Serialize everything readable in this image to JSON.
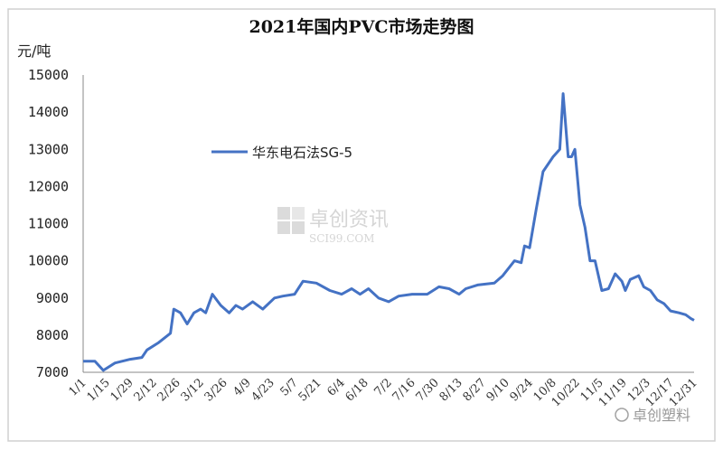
{
  "chart_data": {
    "type": "line",
    "title": "2021年国内PVC市场走势图",
    "ylabel": "元/吨",
    "xlabel": "",
    "ylim": [
      7000,
      15000
    ],
    "yticks": [
      7000,
      8000,
      9000,
      10000,
      11000,
      12000,
      13000,
      14000,
      15000
    ],
    "xticks": [
      "1/1",
      "1/15",
      "1/29",
      "2/12",
      "2/26",
      "3/12",
      "3/26",
      "4/9",
      "4/23",
      "5/7",
      "5/21",
      "6/4",
      "6/18",
      "7/2",
      "7/16",
      "7/30",
      "8/13",
      "8/27",
      "9/10",
      "9/24",
      "10/8",
      "10/22",
      "11/5",
      "11/19",
      "12/3",
      "12/17",
      "12/31"
    ],
    "xrange": [
      "2021-01-01",
      "2021-12-31"
    ],
    "grid": false,
    "legend_position": "top-left",
    "color": "#4472C4",
    "series": [
      {
        "name": "华东电石法SG-5",
        "points": [
          [
            "1/1",
            7300
          ],
          [
            "1/8",
            7300
          ],
          [
            "1/13",
            7050
          ],
          [
            "1/20",
            7250
          ],
          [
            "1/29",
            7350
          ],
          [
            "2/5",
            7400
          ],
          [
            "2/8",
            7600
          ],
          [
            "2/15",
            7800
          ],
          [
            "2/22",
            8050
          ],
          [
            "2/24",
            8700
          ],
          [
            "2/28",
            8600
          ],
          [
            "3/4",
            8300
          ],
          [
            "3/8",
            8600
          ],
          [
            "3/12",
            8700
          ],
          [
            "3/15",
            8600
          ],
          [
            "3/19",
            9100
          ],
          [
            "3/24",
            8800
          ],
          [
            "3/29",
            8600
          ],
          [
            "4/2",
            8800
          ],
          [
            "4/6",
            8700
          ],
          [
            "4/12",
            8900
          ],
          [
            "4/18",
            8700
          ],
          [
            "4/25",
            9000
          ],
          [
            "4/30",
            9050
          ],
          [
            "5/7",
            9100
          ],
          [
            "5/12",
            9450
          ],
          [
            "5/20",
            9400
          ],
          [
            "5/28",
            9200
          ],
          [
            "6/4",
            9100
          ],
          [
            "6/10",
            9250
          ],
          [
            "6/15",
            9100
          ],
          [
            "6/20",
            9250
          ],
          [
            "6/26",
            9000
          ],
          [
            "7/2",
            8900
          ],
          [
            "7/8",
            9050
          ],
          [
            "7/16",
            9100
          ],
          [
            "7/25",
            9100
          ],
          [
            "8/1",
            9300
          ],
          [
            "8/7",
            9250
          ],
          [
            "8/13",
            9100
          ],
          [
            "8/17",
            9250
          ],
          [
            "8/24",
            9350
          ],
          [
            "9/3",
            9400
          ],
          [
            "9/8",
            9600
          ],
          [
            "9/15",
            10000
          ],
          [
            "9/19",
            9950
          ],
          [
            "9/21",
            10400
          ],
          [
            "9/24",
            10350
          ],
          [
            "9/28",
            11400
          ],
          [
            "10/2",
            12400
          ],
          [
            "10/8",
            12800
          ],
          [
            "10/12",
            13000
          ],
          [
            "10/14",
            14500
          ],
          [
            "10/17",
            12800
          ],
          [
            "10/19",
            12800
          ],
          [
            "10/21",
            13000
          ],
          [
            "10/24",
            11500
          ],
          [
            "10/27",
            10900
          ],
          [
            "10/30",
            10000
          ],
          [
            "11/2",
            10000
          ],
          [
            "11/6",
            9200
          ],
          [
            "11/10",
            9250
          ],
          [
            "11/14",
            9650
          ],
          [
            "11/18",
            9450
          ],
          [
            "11/20",
            9200
          ],
          [
            "11/23",
            9500
          ],
          [
            "11/28",
            9600
          ],
          [
            "12/1",
            9300
          ],
          [
            "12/5",
            9200
          ],
          [
            "12/9",
            8950
          ],
          [
            "12/13",
            8850
          ],
          [
            "12/17",
            8650
          ],
          [
            "12/22",
            8600
          ],
          [
            "12/26",
            8550
          ],
          [
            "12/29",
            8450
          ],
          [
            "12/31",
            8400
          ]
        ]
      }
    ]
  },
  "watermarks": {
    "center_cn": "卓创资讯",
    "center_en": "SCI99.COM",
    "corner": "卓创塑料"
  }
}
